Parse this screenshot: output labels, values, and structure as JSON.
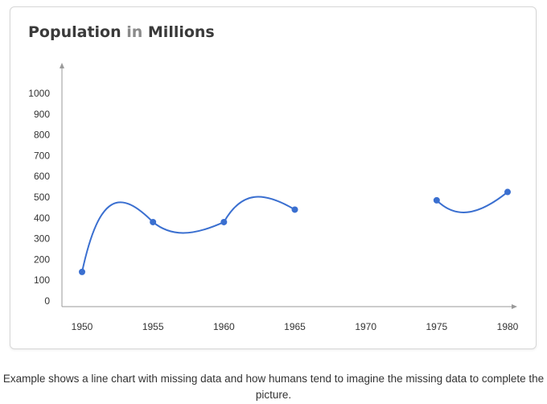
{
  "chart_data": {
    "type": "line",
    "title_parts": [
      "Population ",
      "in",
      " Millions"
    ],
    "x": [
      1950,
      1955,
      1960,
      1965,
      1975,
      1980
    ],
    "values": [
      140,
      380,
      380,
      440,
      485,
      525
    ],
    "gap": [
      1965,
      1975
    ],
    "x_ticks": [
      "1950",
      "1955",
      "1960",
      "1965",
      "1970",
      "1975",
      "1980"
    ],
    "y_ticks": [
      "0",
      "100",
      "200",
      "300",
      "400",
      "500",
      "600",
      "700",
      "800",
      "900",
      "1000"
    ],
    "xlim": [
      1950,
      1980
    ],
    "ylim": [
      0,
      1000
    ],
    "smooth": true,
    "grid": false,
    "line_color": "#3a6fd0",
    "axis_color": "#9a9a9a"
  },
  "caption": "Example shows a line chart with missing data and how humans tend to imagine the missing data to complete the picture."
}
